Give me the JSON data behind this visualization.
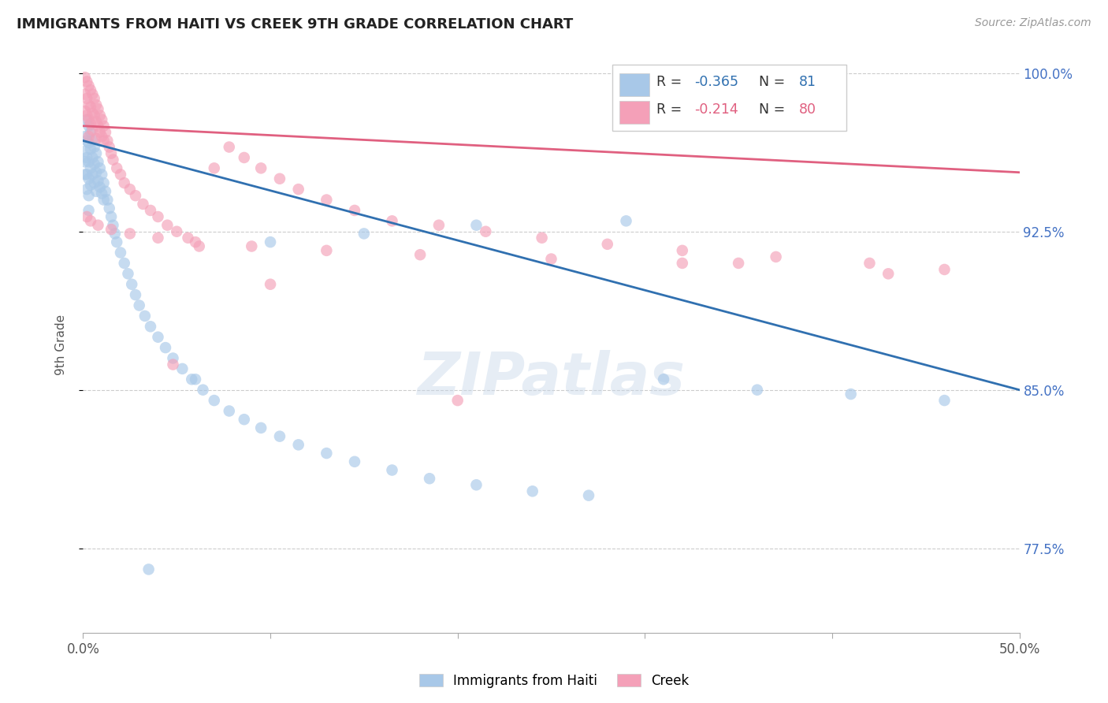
{
  "title": "IMMIGRANTS FROM HAITI VS CREEK 9TH GRADE CORRELATION CHART",
  "source": "Source: ZipAtlas.com",
  "ylabel": "9th Grade",
  "legend_blue_r": "-0.365",
  "legend_blue_n": "81",
  "legend_pink_r": "-0.214",
  "legend_pink_n": "80",
  "blue_color": "#a8c8e8",
  "pink_color": "#f4a0b8",
  "blue_line_color": "#3070b0",
  "pink_line_color": "#e06080",
  "watermark": "ZIPatlas",
  "xlim": [
    0.0,
    0.5
  ],
  "ylim": [
    0.735,
    1.008
  ],
  "yticks": [
    0.775,
    0.85,
    0.925,
    1.0
  ],
  "yticklabels": [
    "77.5%",
    "85.0%",
    "92.5%",
    "100.0%"
  ],
  "blue_scatter_x": [
    0.001,
    0.001,
    0.001,
    0.001,
    0.002,
    0.002,
    0.002,
    0.002,
    0.002,
    0.003,
    0.003,
    0.003,
    0.003,
    0.003,
    0.003,
    0.004,
    0.004,
    0.004,
    0.004,
    0.005,
    0.005,
    0.005,
    0.006,
    0.006,
    0.006,
    0.007,
    0.007,
    0.007,
    0.008,
    0.008,
    0.009,
    0.009,
    0.01,
    0.01,
    0.011,
    0.011,
    0.012,
    0.013,
    0.014,
    0.015,
    0.016,
    0.017,
    0.018,
    0.02,
    0.022,
    0.024,
    0.026,
    0.028,
    0.03,
    0.033,
    0.036,
    0.04,
    0.044,
    0.048,
    0.053,
    0.058,
    0.064,
    0.07,
    0.078,
    0.086,
    0.095,
    0.105,
    0.115,
    0.13,
    0.145,
    0.165,
    0.185,
    0.21,
    0.24,
    0.27,
    0.31,
    0.36,
    0.41,
    0.46,
    0.36,
    0.29,
    0.21,
    0.15,
    0.1,
    0.06,
    0.035
  ],
  "blue_scatter_y": [
    0.97,
    0.963,
    0.958,
    0.952,
    0.978,
    0.968,
    0.96,
    0.952,
    0.945,
    0.975,
    0.967,
    0.958,
    0.95,
    0.942,
    0.935,
    0.972,
    0.964,
    0.955,
    0.947,
    0.968,
    0.96,
    0.952,
    0.965,
    0.957,
    0.948,
    0.962,
    0.953,
    0.944,
    0.958,
    0.949,
    0.955,
    0.946,
    0.952,
    0.943,
    0.948,
    0.94,
    0.944,
    0.94,
    0.936,
    0.932,
    0.928,
    0.924,
    0.92,
    0.915,
    0.91,
    0.905,
    0.9,
    0.895,
    0.89,
    0.885,
    0.88,
    0.875,
    0.87,
    0.865,
    0.86,
    0.855,
    0.85,
    0.845,
    0.84,
    0.836,
    0.832,
    0.828,
    0.824,
    0.82,
    0.816,
    0.812,
    0.808,
    0.805,
    0.802,
    0.8,
    0.855,
    0.85,
    0.848,
    0.845,
    1.0,
    0.93,
    0.928,
    0.924,
    0.92,
    0.855,
    0.765
  ],
  "pink_scatter_x": [
    0.001,
    0.001,
    0.001,
    0.002,
    0.002,
    0.002,
    0.003,
    0.003,
    0.003,
    0.003,
    0.004,
    0.004,
    0.004,
    0.005,
    0.005,
    0.005,
    0.006,
    0.006,
    0.007,
    0.007,
    0.007,
    0.008,
    0.008,
    0.009,
    0.009,
    0.01,
    0.01,
    0.011,
    0.011,
    0.012,
    0.013,
    0.014,
    0.015,
    0.016,
    0.018,
    0.02,
    0.022,
    0.025,
    0.028,
    0.032,
    0.036,
    0.04,
    0.045,
    0.05,
    0.056,
    0.062,
    0.07,
    0.078,
    0.086,
    0.095,
    0.105,
    0.115,
    0.13,
    0.145,
    0.165,
    0.19,
    0.215,
    0.245,
    0.28,
    0.32,
    0.37,
    0.42,
    0.46,
    0.35,
    0.25,
    0.18,
    0.13,
    0.09,
    0.06,
    0.04,
    0.025,
    0.015,
    0.008,
    0.004,
    0.002,
    0.048,
    0.1,
    0.2,
    0.32,
    0.43
  ],
  "pink_scatter_y": [
    0.998,
    0.99,
    0.982,
    0.996,
    0.988,
    0.98,
    0.994,
    0.985,
    0.978,
    0.97,
    0.992,
    0.984,
    0.976,
    0.99,
    0.981,
    0.973,
    0.988,
    0.98,
    0.985,
    0.977,
    0.969,
    0.983,
    0.975,
    0.98,
    0.972,
    0.978,
    0.97,
    0.975,
    0.968,
    0.972,
    0.968,
    0.965,
    0.962,
    0.959,
    0.955,
    0.952,
    0.948,
    0.945,
    0.942,
    0.938,
    0.935,
    0.932,
    0.928,
    0.925,
    0.922,
    0.918,
    0.955,
    0.965,
    0.96,
    0.955,
    0.95,
    0.945,
    0.94,
    0.935,
    0.93,
    0.928,
    0.925,
    0.922,
    0.919,
    0.916,
    0.913,
    0.91,
    0.907,
    0.91,
    0.912,
    0.914,
    0.916,
    0.918,
    0.92,
    0.922,
    0.924,
    0.926,
    0.928,
    0.93,
    0.932,
    0.862,
    0.9,
    0.845,
    0.91,
    0.905
  ]
}
